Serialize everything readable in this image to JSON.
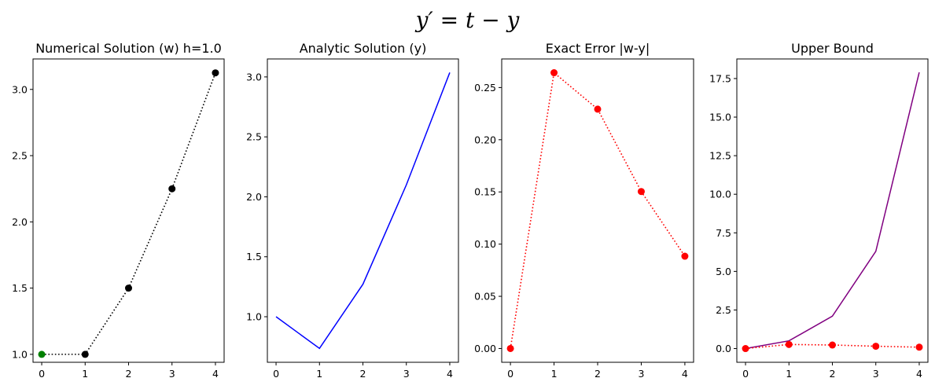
{
  "figure": {
    "suptitle": "y′ = t − y"
  },
  "chart_data": [
    {
      "type": "line",
      "title": "Numerical Solution (w) h=1.0",
      "xlabel": "",
      "ylabel": "",
      "xlim": [
        -0.2,
        4.2
      ],
      "ylim": [
        0.94,
        3.23
      ],
      "xticks": [
        0,
        1,
        2,
        3,
        4
      ],
      "yticks": [
        1.0,
        1.5,
        2.0,
        2.5,
        3.0
      ],
      "grid": false,
      "series": [
        {
          "x": [
            0,
            1,
            2,
            3,
            4
          ],
          "values": [
            1.0,
            1.0,
            1.5,
            2.25,
            3.125
          ],
          "color": "#000000",
          "line_style": "dotted",
          "marker": "circle",
          "marker_colors": [
            "#008000",
            "#000000",
            "#000000",
            "#000000",
            "#000000"
          ]
        }
      ]
    },
    {
      "type": "line",
      "title": "Analytic Solution (y)",
      "xlabel": "",
      "ylabel": "",
      "xlim": [
        -0.2,
        4.2
      ],
      "ylim": [
        0.62,
        3.15
      ],
      "xticks": [
        0,
        1,
        2,
        3,
        4
      ],
      "yticks": [
        1.0,
        1.5,
        2.0,
        2.5,
        3.0
      ],
      "grid": false,
      "series": [
        {
          "x": [
            0,
            1,
            2,
            3,
            4
          ],
          "values": [
            1.0,
            0.7358,
            1.2707,
            2.0996,
            3.0366
          ],
          "color": "#0000ff",
          "line_style": "solid",
          "marker": "none"
        }
      ]
    },
    {
      "type": "line",
      "title": "Exact Error |w-y|",
      "xlabel": "",
      "ylabel": "",
      "xlim": [
        -0.2,
        4.2
      ],
      "ylim": [
        -0.0132,
        0.2774
      ],
      "xticks": [
        0,
        1,
        2,
        3,
        4
      ],
      "yticks": [
        0.0,
        0.05,
        0.1,
        0.15,
        0.2,
        0.25
      ],
      "grid": false,
      "series": [
        {
          "x": [
            0,
            1,
            2,
            3,
            4
          ],
          "values": [
            0.0,
            0.2642,
            0.2293,
            0.1504,
            0.0884
          ],
          "color": "#ff0000",
          "line_style": "dotted",
          "marker": "circle"
        }
      ]
    },
    {
      "type": "line",
      "title": "Upper Bound",
      "xlabel": "",
      "ylabel": "",
      "xlim": [
        -0.2,
        4.2
      ],
      "ylim": [
        -0.89,
        18.77
      ],
      "xticks": [
        0,
        1,
        2,
        3,
        4
      ],
      "yticks": [
        0.0,
        2.5,
        5.0,
        7.5,
        10.0,
        12.5,
        15.0,
        17.5
      ],
      "grid": false,
      "series": [
        {
          "x": [
            0,
            1,
            2,
            3,
            4
          ],
          "values": [
            0.0,
            0.5,
            2.1,
            6.3,
            17.9
          ],
          "color": "#800080",
          "line_style": "solid",
          "marker": "none"
        },
        {
          "x": [
            0,
            1,
            2,
            3,
            4
          ],
          "values": [
            0.0,
            0.2642,
            0.2293,
            0.1504,
            0.0884
          ],
          "color": "#ff0000",
          "line_style": "dotted",
          "marker": "circle"
        }
      ]
    }
  ]
}
